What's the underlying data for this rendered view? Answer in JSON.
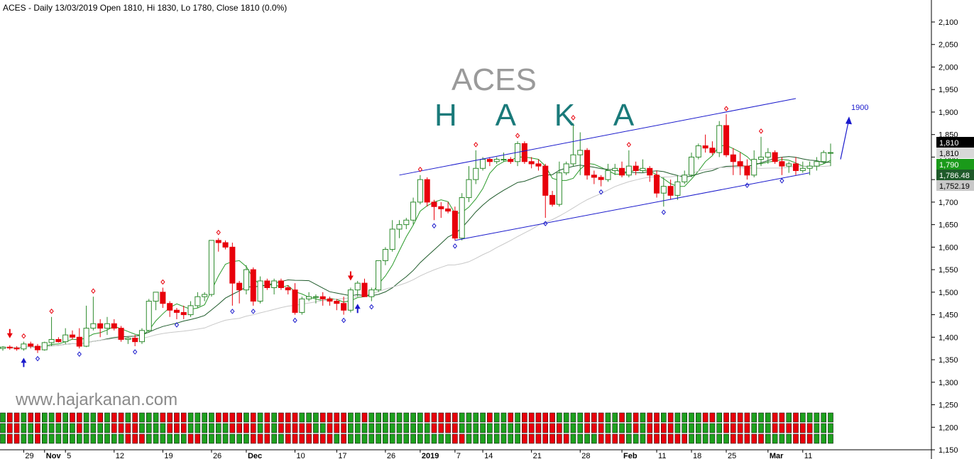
{
  "header": {
    "text": "ACES - Daily 13/03/2019 Open 1810, Hi 1830, Lo 1780, Close 1810 (0.0%)"
  },
  "overlay": {
    "ticker": "ACES",
    "signal": "H A K A",
    "watermark": "www.hajarkanan.com",
    "target_label": "1900"
  },
  "colors": {
    "up": "#2e8b2e",
    "down": "#e8000b",
    "ma_fast": "#2a9a2a",
    "ma_mid": "#1e5a2a",
    "ma_slow": "#c8c8c8",
    "channel": "#1a1acc",
    "target_arrow": "#1a1acc"
  },
  "chart_data": {
    "type": "candlestick",
    "ylim": [
      1150,
      2120
    ],
    "y_ticks": [
      "2,100",
      "2,050",
      "2,000",
      "1,950",
      "1,900",
      "1,850",
      "1,800",
      "1,750",
      "1,700",
      "1,650",
      "1,600",
      "1,550",
      "1,500",
      "1,450",
      "1,400",
      "1,350",
      "1,300",
      "1,250",
      "1,200",
      "1,150"
    ],
    "x_ticks": [
      "29",
      "Nov",
      "5",
      "12",
      "19",
      "26",
      "Dec",
      "10",
      "17",
      "26",
      "2019",
      "7",
      "14",
      "21",
      "28",
      "Feb",
      "11",
      "18",
      "25",
      "Mar",
      "11"
    ],
    "price_labels": [
      "1,810",
      "1,810",
      "1,790",
      "1,786.48",
      "1,752.19"
    ],
    "candles": [
      [
        1375,
        1380,
        1370,
        1378
      ],
      [
        1378,
        1382,
        1372,
        1376
      ],
      [
        1376,
        1380,
        1370,
        1374
      ],
      [
        1374,
        1390,
        1370,
        1385
      ],
      [
        1385,
        1390,
        1375,
        1380
      ],
      [
        1380,
        1385,
        1365,
        1372
      ],
      [
        1372,
        1390,
        1370,
        1388
      ],
      [
        1388,
        1445,
        1380,
        1395
      ],
      [
        1395,
        1400,
        1388,
        1390
      ],
      [
        1390,
        1420,
        1385,
        1405
      ],
      [
        1405,
        1415,
        1395,
        1400
      ],
      [
        1400,
        1420,
        1375,
        1380
      ],
      [
        1380,
        1470,
        1378,
        1420
      ],
      [
        1420,
        1490,
        1415,
        1430
      ],
      [
        1430,
        1440,
        1400,
        1420
      ],
      [
        1420,
        1445,
        1405,
        1430
      ],
      [
        1430,
        1440,
        1415,
        1420
      ],
      [
        1420,
        1425,
        1390,
        1395
      ],
      [
        1395,
        1400,
        1385,
        1398
      ],
      [
        1398,
        1405,
        1380,
        1390
      ],
      [
        1390,
        1420,
        1385,
        1415
      ],
      [
        1415,
        1485,
        1410,
        1480
      ],
      [
        1480,
        1500,
        1460,
        1500
      ],
      [
        1500,
        1510,
        1465,
        1475
      ],
      [
        1475,
        1480,
        1445,
        1460
      ],
      [
        1460,
        1465,
        1440,
        1455
      ],
      [
        1455,
        1470,
        1440,
        1450
      ],
      [
        1450,
        1480,
        1445,
        1470
      ],
      [
        1470,
        1500,
        1465,
        1490
      ],
      [
        1490,
        1500,
        1480,
        1495
      ],
      [
        1495,
        1615,
        1490,
        1615
      ],
      [
        1615,
        1620,
        1590,
        1610
      ],
      [
        1610,
        1615,
        1595,
        1600
      ],
      [
        1600,
        1610,
        1470,
        1520
      ],
      [
        1520,
        1525,
        1475,
        1505
      ],
      [
        1505,
        1560,
        1495,
        1550
      ],
      [
        1550,
        1555,
        1470,
        1480
      ],
      [
        1480,
        1535,
        1475,
        1525
      ],
      [
        1525,
        1530,
        1505,
        1510
      ],
      [
        1510,
        1530,
        1495,
        1525
      ],
      [
        1525,
        1530,
        1505,
        1510
      ],
      [
        1510,
        1515,
        1495,
        1505
      ],
      [
        1505,
        1520,
        1450,
        1455
      ],
      [
        1455,
        1490,
        1450,
        1485
      ],
      [
        1485,
        1500,
        1480,
        1490
      ],
      [
        1490,
        1495,
        1475,
        1490
      ],
      [
        1490,
        1500,
        1470,
        1485
      ],
      [
        1485,
        1490,
        1470,
        1480
      ],
      [
        1480,
        1485,
        1460,
        1475
      ],
      [
        1475,
        1490,
        1450,
        1460
      ],
      [
        1460,
        1510,
        1455,
        1505
      ],
      [
        1505,
        1525,
        1490,
        1520
      ],
      [
        1520,
        1530,
        1490,
        1490
      ],
      [
        1490,
        1510,
        1480,
        1505
      ],
      [
        1505,
        1570,
        1500,
        1570
      ],
      [
        1570,
        1600,
        1560,
        1595
      ],
      [
        1595,
        1660,
        1590,
        1640
      ],
      [
        1640,
        1660,
        1620,
        1650
      ],
      [
        1650,
        1665,
        1640,
        1660
      ],
      [
        1660,
        1710,
        1650,
        1700
      ],
      [
        1700,
        1760,
        1695,
        1750
      ],
      [
        1750,
        1755,
        1690,
        1700
      ],
      [
        1700,
        1705,
        1660,
        1690
      ],
      [
        1690,
        1700,
        1665,
        1685
      ],
      [
        1685,
        1700,
        1675,
        1680
      ],
      [
        1680,
        1690,
        1615,
        1620
      ],
      [
        1620,
        1720,
        1615,
        1710
      ],
      [
        1710,
        1780,
        1700,
        1750
      ],
      [
        1750,
        1815,
        1740,
        1775
      ],
      [
        1775,
        1800,
        1770,
        1795
      ],
      [
        1795,
        1800,
        1780,
        1790
      ],
      [
        1790,
        1800,
        1785,
        1795
      ],
      [
        1795,
        1810,
        1790,
        1795
      ],
      [
        1795,
        1800,
        1785,
        1790
      ],
      [
        1790,
        1835,
        1780,
        1830
      ],
      [
        1830,
        1835,
        1785,
        1790
      ],
      [
        1790,
        1800,
        1775,
        1785
      ],
      [
        1785,
        1795,
        1770,
        1780
      ],
      [
        1780,
        1785,
        1665,
        1715
      ],
      [
        1715,
        1725,
        1690,
        1695
      ],
      [
        1695,
        1790,
        1690,
        1765
      ],
      [
        1765,
        1790,
        1760,
        1785
      ],
      [
        1785,
        1875,
        1780,
        1805
      ],
      [
        1805,
        1855,
        1760,
        1815
      ],
      [
        1815,
        1820,
        1750,
        1760
      ],
      [
        1760,
        1770,
        1740,
        1755
      ],
      [
        1755,
        1760,
        1735,
        1750
      ],
      [
        1750,
        1785,
        1745,
        1770
      ],
      [
        1770,
        1785,
        1760,
        1775
      ],
      [
        1775,
        1790,
        1755,
        1760
      ],
      [
        1760,
        1815,
        1755,
        1780
      ],
      [
        1780,
        1790,
        1760,
        1770
      ],
      [
        1770,
        1795,
        1765,
        1775
      ],
      [
        1775,
        1780,
        1745,
        1760
      ],
      [
        1760,
        1770,
        1710,
        1720
      ],
      [
        1720,
        1755,
        1690,
        1735
      ],
      [
        1735,
        1750,
        1705,
        1715
      ],
      [
        1715,
        1760,
        1705,
        1745
      ],
      [
        1745,
        1770,
        1740,
        1760
      ],
      [
        1760,
        1810,
        1755,
        1800
      ],
      [
        1800,
        1830,
        1795,
        1825
      ],
      [
        1825,
        1850,
        1810,
        1820
      ],
      [
        1820,
        1835,
        1805,
        1810
      ],
      [
        1810,
        1880,
        1800,
        1870
      ],
      [
        1870,
        1895,
        1800,
        1805
      ],
      [
        1805,
        1820,
        1760,
        1790
      ],
      [
        1790,
        1810,
        1760,
        1780
      ],
      [
        1780,
        1795,
        1750,
        1760
      ],
      [
        1760,
        1815,
        1755,
        1795
      ],
      [
        1795,
        1845,
        1780,
        1800
      ],
      [
        1800,
        1820,
        1785,
        1810
      ],
      [
        1810,
        1815,
        1785,
        1790
      ],
      [
        1790,
        1800,
        1760,
        1780
      ],
      [
        1780,
        1790,
        1765,
        1785
      ],
      [
        1785,
        1800,
        1760,
        1770
      ],
      [
        1770,
        1790,
        1765,
        1775
      ],
      [
        1775,
        1790,
        1760,
        1780
      ],
      [
        1780,
        1800,
        1770,
        1790
      ],
      [
        1790,
        1815,
        1785,
        1810
      ],
      [
        1810,
        1830,
        1780,
        1810
      ]
    ]
  }
}
